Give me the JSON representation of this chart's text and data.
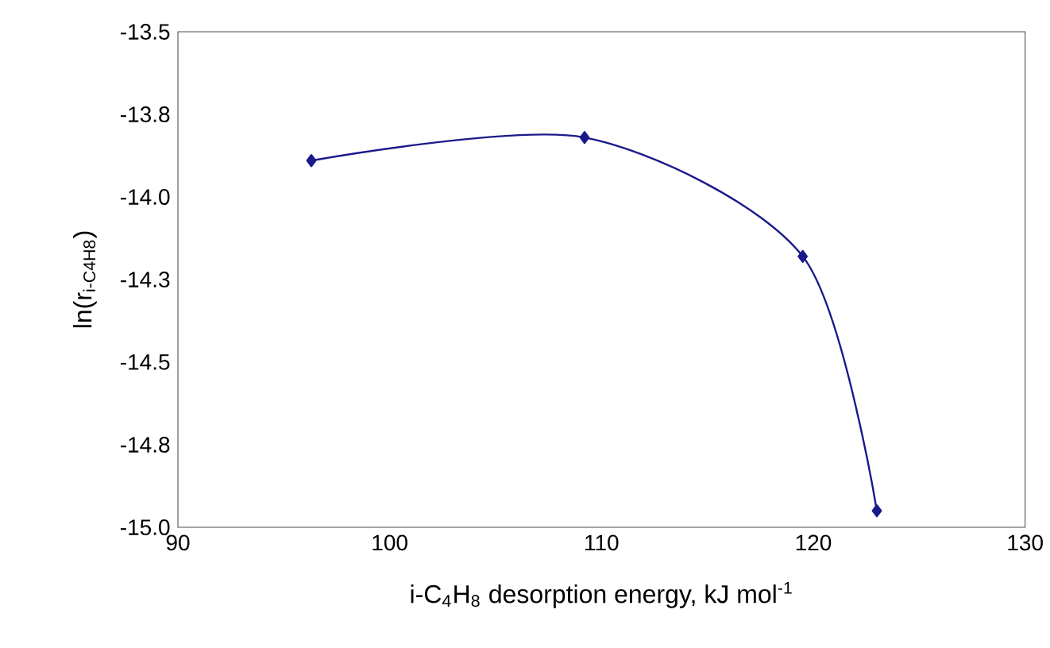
{
  "chart_data": {
    "type": "line",
    "xlabel": "i-C$_{4}$H$_{8}$ desorption energy, kJ mol$^{-1}$",
    "ylabel": "ln(r$_{i-C4H8}$)",
    "x": [
      96.3,
      109.2,
      119.5,
      123.0
    ],
    "series": [
      {
        "color": "#1a1a8c",
        "values": [
          -13.89,
          -13.82,
          -14.18,
          -14.95
        ]
      }
    ],
    "marker": "diamond",
    "xlim": [
      90,
      130
    ],
    "xticks": [
      90,
      100,
      110,
      120,
      130
    ],
    "ylim": [
      -15.0,
      -13.5
    ],
    "yticks": [
      {
        "value": -15.0,
        "label": "-15.0"
      },
      {
        "value": -14.75,
        "label": "-14.8"
      },
      {
        "value": -14.5,
        "label": "-14.5"
      },
      {
        "value": -14.25,
        "label": "-14.3"
      },
      {
        "value": -14.0,
        "label": "-14.0"
      },
      {
        "value": -13.75,
        "label": "-13.8"
      },
      {
        "value": -13.5,
        "label": "-13.5"
      }
    ]
  }
}
